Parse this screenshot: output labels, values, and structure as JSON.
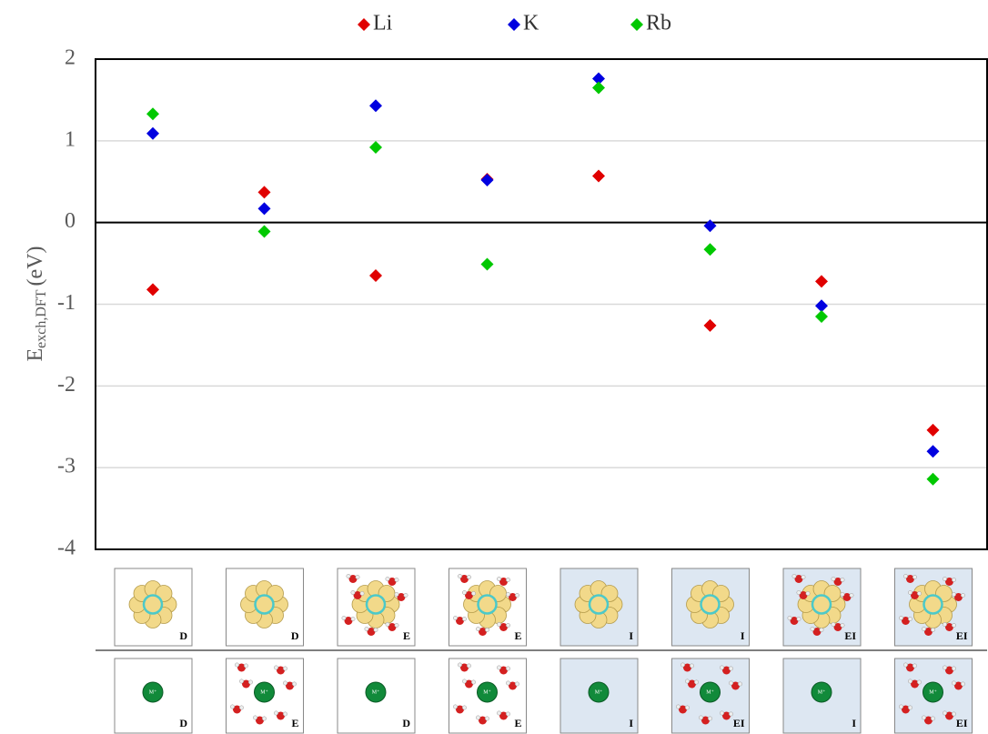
{
  "chart_data": {
    "type": "scatter",
    "ylabel": {
      "main": "E",
      "sub": "exch,DFT",
      "unit": "(eV)"
    },
    "categories": [
      null,
      null,
      null,
      null,
      null,
      null,
      null,
      null
    ],
    "series": [
      {
        "name": "Li",
        "color": "#e00000",
        "values": [
          -0.82,
          0.37,
          -0.65,
          0.53,
          0.57,
          -1.26,
          -0.72,
          -2.54
        ]
      },
      {
        "name": "K",
        "color": "#0000e0",
        "values": [
          1.09,
          0.17,
          1.43,
          0.52,
          1.76,
          -0.04,
          -1.02,
          -2.8
        ]
      },
      {
        "name": "Rb",
        "color": "#00c800",
        "values": [
          1.33,
          -0.11,
          0.92,
          -0.51,
          1.65,
          -0.33,
          -1.15,
          -3.14
        ]
      }
    ],
    "ylim": [
      -4,
      2
    ],
    "yticks": [
      2,
      1,
      0,
      -1,
      -2,
      -3,
      -4
    ],
    "grid": true,
    "legend": "top",
    "panels": {
      "top": [
        "D",
        "D",
        "E",
        "E",
        "I",
        "I",
        "EI",
        "EI"
      ],
      "bottom": [
        "D",
        "E",
        "D",
        "E",
        "I",
        "EI",
        "I",
        "EI"
      ],
      "ion": "M⁺"
    }
  }
}
